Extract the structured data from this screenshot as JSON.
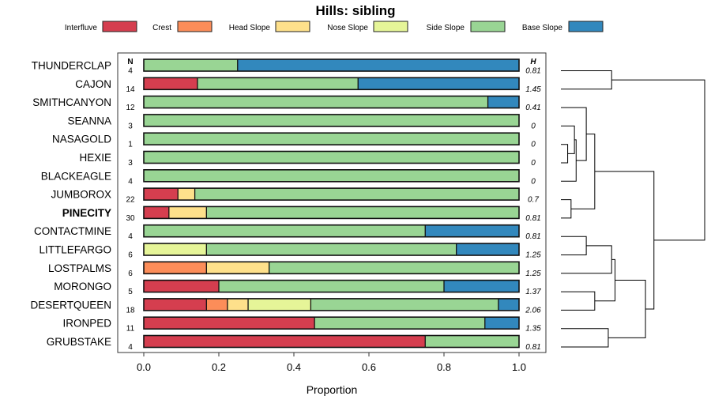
{
  "chart_data": {
    "type": "bar",
    "subtype": "stacked-horizontal-proportion",
    "title": "Hills: sibling",
    "xlabel": "Proportion",
    "ylabel": "",
    "xlim": [
      0,
      1
    ],
    "xticks": [
      0,
      0.2,
      0.4,
      0.6,
      0.8,
      1
    ],
    "xtick_labels": [
      "0.0",
      "0.2",
      "0.4",
      "0.6",
      "0.8",
      "1.0"
    ],
    "n_header": "N",
    "h_header": "H",
    "highlight": "PINECITY",
    "legend": [
      {
        "name": "Interfluve",
        "color": "#d53e4f"
      },
      {
        "name": "Crest",
        "color": "#fc8d59"
      },
      {
        "name": "Head Slope",
        "color": "#fee08b"
      },
      {
        "name": "Nose Slope",
        "color": "#e6f598"
      },
      {
        "name": "Side Slope",
        "color": "#99d594"
      },
      {
        "name": "Base Slope",
        "color": "#3288bd"
      }
    ],
    "rows": [
      {
        "name": "THUNDERCLAP",
        "n": "4",
        "h": "0.81",
        "values": [
          0,
          0,
          0,
          0,
          0.25,
          0.75
        ]
      },
      {
        "name": "CAJON",
        "n": "14",
        "h": "1.45",
        "values": [
          0.143,
          0,
          0,
          0,
          0.428,
          0.429
        ]
      },
      {
        "name": "SMITHCANYON",
        "n": "12",
        "h": "0.41",
        "values": [
          0,
          0,
          0,
          0,
          0.917,
          0.083
        ]
      },
      {
        "name": "SEANNA",
        "n": "3",
        "h": "0",
        "values": [
          0,
          0,
          0,
          0,
          1,
          0
        ]
      },
      {
        "name": "NASAGOLD",
        "n": "1",
        "h": "0",
        "values": [
          0,
          0,
          0,
          0,
          1,
          0
        ]
      },
      {
        "name": "HEXIE",
        "n": "3",
        "h": "0",
        "values": [
          0,
          0,
          0,
          0,
          1,
          0
        ]
      },
      {
        "name": "BLACKEAGLE",
        "n": "4",
        "h": "0",
        "values": [
          0,
          0,
          0,
          0,
          1,
          0
        ]
      },
      {
        "name": "JUMBOROX",
        "n": "22",
        "h": "0.7",
        "values": [
          0.091,
          0,
          0.045,
          0,
          0.864,
          0
        ]
      },
      {
        "name": "PINECITY",
        "n": "30",
        "h": "0.81",
        "values": [
          0.067,
          0,
          0.1,
          0,
          0.833,
          0
        ]
      },
      {
        "name": "CONTACTMINE",
        "n": "4",
        "h": "0.81",
        "values": [
          0,
          0,
          0,
          0,
          0.75,
          0.25
        ]
      },
      {
        "name": "LITTLEFARGO",
        "n": "6",
        "h": "1.25",
        "values": [
          0,
          0,
          0,
          0.167,
          0.666,
          0.167
        ]
      },
      {
        "name": "LOSTPALMS",
        "n": "6",
        "h": "1.25",
        "values": [
          0,
          0.167,
          0.167,
          0,
          0.666,
          0
        ]
      },
      {
        "name": "MORONGO",
        "n": "5",
        "h": "1.37",
        "values": [
          0.2,
          0,
          0,
          0,
          0.6,
          0.2
        ]
      },
      {
        "name": "DESERTQUEEN",
        "n": "18",
        "h": "2.06",
        "values": [
          0.167,
          0.056,
          0.055,
          0.167,
          0.5,
          0.055
        ]
      },
      {
        "name": "IRONPED",
        "n": "11",
        "h": "1.35",
        "values": [
          0.455,
          0,
          0,
          0,
          0.454,
          0.091
        ]
      },
      {
        "name": "GRUBSTAKE",
        "n": "4",
        "h": "0.81",
        "values": [
          0.75,
          0,
          0,
          0,
          0.25,
          0
        ]
      }
    ],
    "dendrogram": {
      "type": "hierarchical-clustering",
      "leaf_order": [
        "THUNDERCLAP",
        "CAJON",
        "SMITHCANYON",
        "SEANNA",
        "NASAGOLD",
        "HEXIE",
        "BLACKEAGLE",
        "JUMBOROX",
        "PINECITY",
        "CONTACTMINE",
        "LITTLEFARGO",
        "LOSTPALMS",
        "MORONGO",
        "DESERTQUEEN",
        "IRONPED",
        "GRUBSTAKE"
      ],
      "merges": [
        {
          "a": "L4",
          "b": "L5",
          "height": 0.04
        },
        {
          "a": "L3",
          "b": "N0",
          "height": 0.08
        },
        {
          "a": "L7",
          "b": "L8",
          "height": 0.06
        },
        {
          "a": "L6",
          "b": "N1",
          "height": 0.09
        },
        {
          "a": "L2",
          "b": "N3",
          "height": 0.15
        },
        {
          "a": "N4",
          "b": "N2",
          "height": 0.2
        },
        {
          "a": "L0",
          "b": "L1",
          "height": 0.3
        },
        {
          "a": "L9",
          "b": "L10",
          "height": 0.15
        },
        {
          "a": "N7",
          "b": "L11",
          "height": 0.3
        },
        {
          "a": "L12",
          "b": "L13",
          "height": 0.2
        },
        {
          "a": "N8",
          "b": "N9",
          "height": 0.32
        },
        {
          "a": "L14",
          "b": "L15",
          "height": 0.28
        },
        {
          "a": "N10",
          "b": "N11",
          "height": 0.5
        },
        {
          "a": "N5",
          "b": "N12",
          "height": 0.55
        },
        {
          "a": "N6",
          "b": "N13",
          "height": 0.85
        }
      ]
    }
  }
}
